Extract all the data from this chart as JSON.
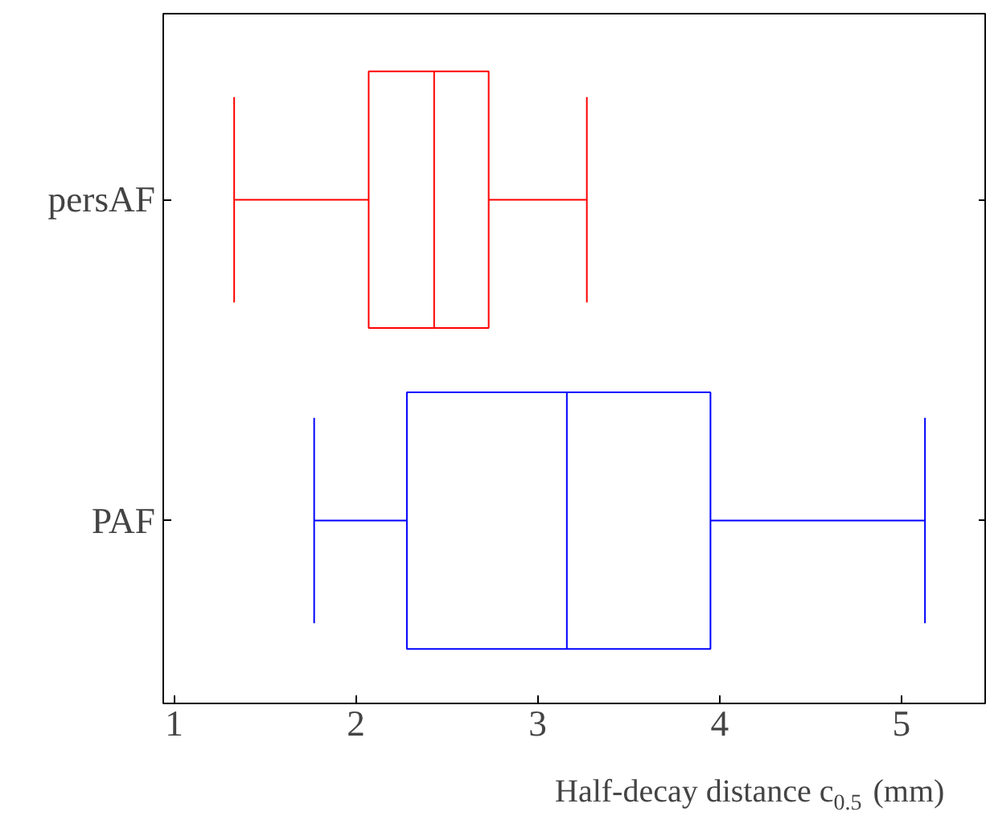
{
  "chart_data": {
    "type": "box",
    "orientation": "horizontal",
    "xlabel": "Half-decay distance c$_{0.5}$ (mm)",
    "categories": [
      "persAF",
      "PAF"
    ],
    "colors": [
      "#ff0000",
      "#0000ff"
    ],
    "boxes": [
      {
        "low": 1.33,
        "q1": 2.07,
        "median": 2.43,
        "q3": 2.73,
        "high": 3.27
      },
      {
        "low": 1.77,
        "q1": 2.28,
        "median": 3.16,
        "q3": 3.95,
        "high": 5.13
      }
    ],
    "xlim": [
      0.94,
      5.47
    ],
    "xticks": [
      1,
      2,
      3,
      4,
      5
    ],
    "grid": false
  }
}
